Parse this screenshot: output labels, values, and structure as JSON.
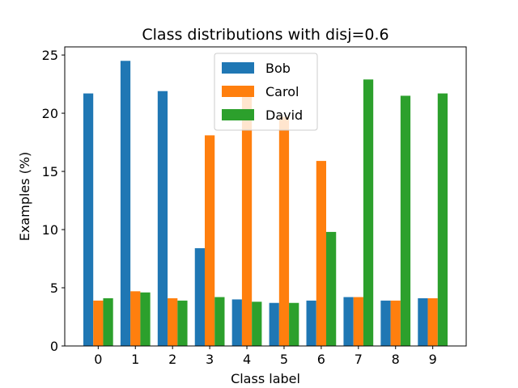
{
  "chart_data": {
    "type": "bar",
    "title": "Class distributions with disj=0.6",
    "xlabel": "Class label",
    "ylabel": "Examples (%)",
    "categories": [
      "0",
      "1",
      "2",
      "3",
      "4",
      "5",
      "6",
      "7",
      "8",
      "9"
    ],
    "yticks": [
      "0",
      "5",
      "10",
      "15",
      "20",
      "25"
    ],
    "ylim": [
      0,
      25.7
    ],
    "grid": false,
    "legend_position": "top-center",
    "series": [
      {
        "name": "Bob",
        "color": "#1f77b4",
        "values": [
          21.7,
          24.5,
          21.9,
          8.4,
          4.0,
          3.7,
          3.9,
          4.2,
          3.9,
          4.1
        ]
      },
      {
        "name": "Carol",
        "color": "#ff7f0e",
        "values": [
          3.9,
          4.7,
          4.1,
          18.1,
          21.8,
          19.7,
          15.9,
          4.2,
          3.9,
          4.1
        ]
      },
      {
        "name": "David",
        "color": "#2ca02c",
        "values": [
          4.1,
          4.6,
          3.9,
          4.2,
          3.8,
          3.7,
          9.8,
          22.9,
          21.5,
          21.7
        ]
      }
    ]
  }
}
